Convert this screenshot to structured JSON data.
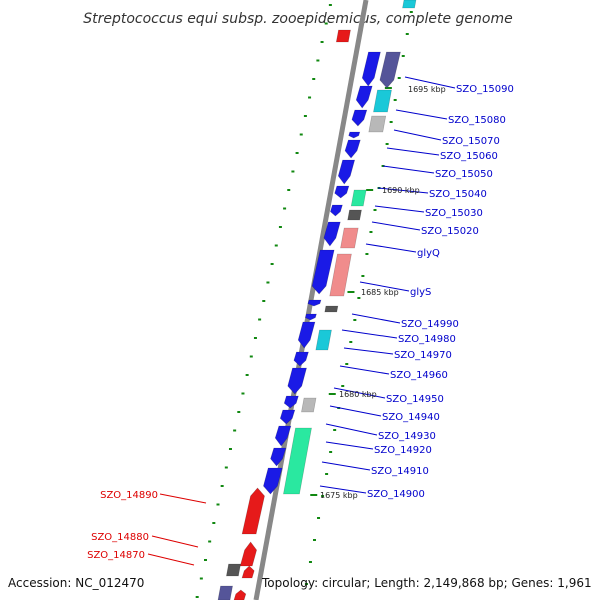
{
  "title": "Streptococcus equi subsp. zooepidemicus, complete genome",
  "footer": {
    "accession": "Accession: NC_012470",
    "summary": "Topology: circular; Length: 2,149,868 bp; Genes: 1,961"
  },
  "colors": {
    "forward_gene": "#1a1ae6",
    "reverse_gene": "#e61a1a",
    "cyan": "#1ac8d8",
    "mint": "#2ae8a0",
    "salmon": "#f08c8c",
    "gray": "#b8b8b8",
    "dark_gray": "#555555",
    "slate": "#555599",
    "backbone": "#888888",
    "tick": "#118811"
  },
  "scale_labels": [
    "1695 kbp",
    "1690 kbp",
    "1685 kbp",
    "1680 kbp",
    "1675 kbp"
  ],
  "gene_labels_right": [
    "SZO_15090",
    "SZO_15080",
    "SZO_15070",
    "SZO_15060",
    "SZO_15050",
    "SZO_15040",
    "SZO_15030",
    "SZO_15020",
    "glyQ",
    "glyS",
    "SZO_14990",
    "SZO_14980",
    "SZO_14970",
    "SZO_14960",
    "SZO_14950",
    "SZO_14940",
    "SZO_14930",
    "SZO_14920",
    "SZO_14910",
    "SZO_14900"
  ],
  "gene_labels_left": [
    "SZO_14890",
    "SZO_14880",
    "SZO_14870"
  ]
}
